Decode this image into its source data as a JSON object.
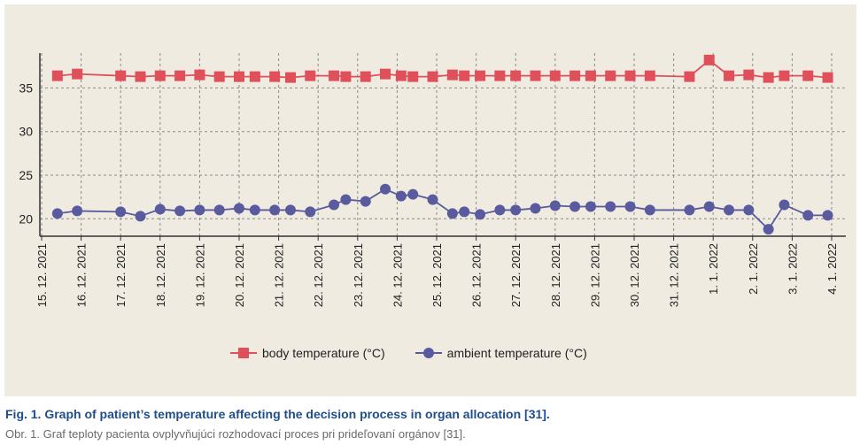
{
  "chart_data": {
    "type": "line",
    "title": "",
    "xlabel": "",
    "ylabel": "",
    "ylim": [
      18,
      39
    ],
    "yticks": [
      20,
      25,
      30,
      35
    ],
    "grid": true,
    "legend_position": "bottom",
    "x_tick_labels": [
      "15. 12. 2021",
      "16. 12. 2021",
      "17. 12. 2021",
      "18. 12. 2021",
      "19. 12. 2021",
      "20. 12. 2021",
      "21. 12. 2021",
      "22. 12. 2021",
      "23. 12. 2021",
      "24. 12. 2021",
      "25. 12. 2021",
      "26. 12. 2021",
      "27. 12. 2021",
      "28. 12. 2021",
      "29. 12. 2021",
      "30. 12. 2021",
      "31. 12. 2021",
      "1. 1. 2022",
      "2. 1. 2022",
      "3. 1. 2022",
      "4. 1. 2022"
    ],
    "x_tick_values": [
      0,
      1,
      2,
      3,
      4,
      5,
      6,
      7,
      8,
      9,
      10,
      11,
      12,
      13,
      14,
      15,
      16,
      17,
      18,
      19,
      20
    ],
    "x": [
      0.4,
      0.9,
      2.0,
      2.5,
      3.0,
      3.5,
      4.0,
      4.5,
      5.0,
      5.4,
      5.9,
      6.3,
      6.8,
      7.4,
      7.7,
      8.2,
      8.7,
      9.1,
      9.4,
      9.9,
      10.4,
      10.7,
      11.1,
      11.6,
      12.0,
      12.5,
      13.0,
      13.5,
      13.9,
      14.4,
      14.9,
      15.4,
      16.4,
      16.9,
      17.4,
      17.9,
      18.4,
      18.8,
      19.4,
      19.9
    ],
    "series": [
      {
        "name": "body temperature (°C)",
        "color": "#e0505a",
        "marker": "square",
        "values": [
          36.4,
          36.6,
          36.4,
          36.3,
          36.4,
          36.4,
          36.5,
          36.3,
          36.3,
          36.3,
          36.3,
          36.2,
          36.4,
          36.4,
          36.3,
          36.3,
          36.6,
          36.4,
          36.3,
          36.3,
          36.5,
          36.4,
          36.4,
          36.4,
          36.4,
          36.4,
          36.4,
          36.4,
          36.4,
          36.4,
          36.4,
          36.4,
          36.3,
          38.2,
          36.4,
          36.5,
          36.2,
          36.4,
          36.4,
          36.2
        ]
      },
      {
        "name": "ambient temperature (°C)",
        "color": "#5a5a9e",
        "marker": "circle",
        "values": [
          20.6,
          20.9,
          20.8,
          20.3,
          21.1,
          20.9,
          21.0,
          21.0,
          21.2,
          21.0,
          21.0,
          21.0,
          20.8,
          21.6,
          22.2,
          22.0,
          23.4,
          22.6,
          22.8,
          22.2,
          20.6,
          20.8,
          20.5,
          21.0,
          21.0,
          21.2,
          21.5,
          21.4,
          21.4,
          21.4,
          21.4,
          21.0,
          21.0,
          21.4,
          21.0,
          21.0,
          18.8,
          21.6,
          20.4,
          20.4
        ]
      }
    ]
  },
  "legend": {
    "body_label": "body temperature (°C)",
    "ambient_label": "ambient temperature (°C)"
  },
  "caption": {
    "title": "Fig. 1. Graph of patient’s temperature affecting the decision process in organ allocation [31].",
    "subtitle": "Obr. 1. Graf teploty pacienta ovplyvňujúci rozhodovací proces pri prideľovaní orgánov [31]."
  },
  "colors": {
    "panel_background": "#efebe1",
    "grid": "#8a8a8a",
    "axis": "#333333",
    "caption_title": "#1f4e8c",
    "caption_subtitle": "#6a6a6a"
  }
}
